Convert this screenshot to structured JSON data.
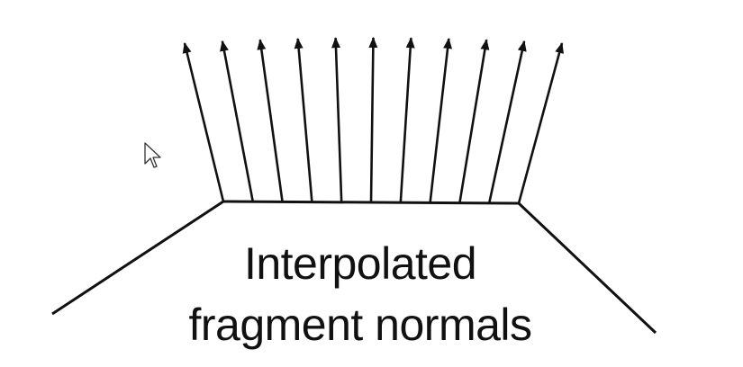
{
  "diagram": {
    "title_lines": [
      "Interpolated",
      "fragment normals"
    ],
    "normals_count": 11,
    "stroke_color": "#111111",
    "background_color": "#ffffff"
  },
  "icons": {
    "cursor": "mouse-pointer-icon"
  }
}
